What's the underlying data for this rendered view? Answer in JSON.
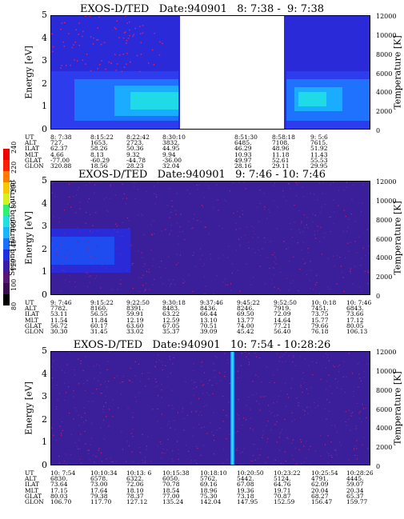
{
  "instrument": "EXOS-D/TED",
  "date_label": "Date:940901",
  "colorbar": {
    "title": "Second Harmonic Current",
    "ticks": [
      "80",
      "100",
      "120",
      "140",
      "160",
      "180",
      "200",
      "220",
      "240"
    ],
    "colors": [
      "#000000",
      "#3a0a4e",
      "#5a1675",
      "#3a1aa8",
      "#1f2ee0",
      "#1a73ff",
      "#18b6ff",
      "#20e0e0",
      "#30f070",
      "#d8f020",
      "#f8c800",
      "#ff7a00",
      "#ff2000",
      "#ee0000"
    ]
  },
  "y_left": {
    "label": "Energy [eV]",
    "ticks": [
      "0",
      "1",
      "2",
      "3",
      "4",
      "5"
    ],
    "range": [
      0,
      5
    ]
  },
  "y_right": {
    "label": "Temperature [K]",
    "ticks": [
      "0",
      "2000",
      "4000",
      "6000",
      "8000",
      "10000",
      "12000"
    ],
    "range": [
      0,
      12000
    ]
  },
  "row_labels": [
    "UT",
    "ALT",
    "ILAT",
    "MLT",
    "GLAT",
    "GLON"
  ],
  "panels": [
    {
      "title": "EXOS-D/TED   Date:940901   8: 7:38 -  9: 7:38",
      "columns": [
        [
          "8: 7:38",
          "727.",
          "62.37",
          "4.66",
          "-77.00",
          "320.88"
        ],
        [
          "8:15:22",
          "1653.",
          "58.26",
          "8.13",
          "-60.29",
          "18.56"
        ],
        [
          "8:22:42",
          "2723.",
          "50.36",
          "9.32",
          "-44.78",
          "28.23"
        ],
        [
          "8:30:10",
          "3832.",
          "44.95",
          "9.94",
          "-36.00",
          "32.04"
        ],
        [
          "8:51:30",
          "6485.",
          "46.29",
          "10.93",
          "49.97",
          "28.16"
        ],
        [
          "8:58:18",
          "7108.",
          "48.96",
          "11.18",
          "52.61",
          "29.11"
        ],
        [
          "9: 5:6",
          "7615.",
          "51.92",
          "11.43",
          "55.53",
          "29.95"
        ]
      ],
      "gap": true
    },
    {
      "title": "EXOS-D/TED   Date:940901   9: 7:46 - 10: 7:46",
      "columns": [
        [
          "9: 7:46",
          "7782.",
          "53.11",
          "11.54",
          "56.72",
          "30.30"
        ],
        [
          "9:15:22",
          "8160.",
          "56.55",
          "11.84",
          "60.17",
          "31.45"
        ],
        [
          "9:22:50",
          "8391.",
          "59.91",
          "12.19",
          "63.60",
          "33.02"
        ],
        [
          "9:30:18",
          "8483.",
          "63.22",
          "12.59",
          "67.05",
          "35.37"
        ],
        [
          "9:37:46",
          "8436.",
          "66.44",
          "13.10",
          "70.51",
          "39.09"
        ],
        [
          "9:45:22",
          "8246.",
          "69.50",
          "13.77",
          "74.00",
          "45.42"
        ],
        [
          "9:52:50",
          "7919.",
          "72.09",
          "14.64",
          "77.21",
          "56.40"
        ],
        [
          "10: 0:18",
          "7451.",
          "73.75",
          "15.77",
          "79.66",
          "76.18"
        ],
        [
          "10: 7:46",
          "6843.",
          "73.66",
          "17.12",
          "80.05",
          "106.13"
        ]
      ],
      "gap": false
    },
    {
      "title": "EXOS-D/TED   Date:940901   10: 7:54 - 10:28:26",
      "columns": [
        [
          "10: 7:54",
          "6830.",
          "73.64",
          "17.15",
          "80.03",
          "106.70"
        ],
        [
          "10:10:34",
          "6578.",
          "73.00",
          "17.64",
          "79.38",
          "117.70"
        ],
        [
          "10:13: 6",
          "6322.",
          "72.06",
          "18.10",
          "78.37",
          "127.12"
        ],
        [
          "10:15:38",
          "6050.",
          "70.78",
          "18.54",
          "77.00",
          "135.24"
        ],
        [
          "10:18:10",
          "5762.",
          "69.16",
          "18.96",
          "75.30",
          "142.04"
        ],
        [
          "10:20:50",
          "5442.",
          "67.08",
          "19.36",
          "73.18",
          "147.95"
        ],
        [
          "10:23:22",
          "5124.",
          "64.76",
          "19.71",
          "70.87",
          "152.59"
        ],
        [
          "10:25:54",
          "4791.",
          "62.09",
          "20.04",
          "68.27",
          "156.47"
        ],
        [
          "10:28:26",
          "4445.",
          "59.07",
          "20.34",
          "65.37",
          "159.77"
        ]
      ],
      "gap": false
    }
  ]
}
